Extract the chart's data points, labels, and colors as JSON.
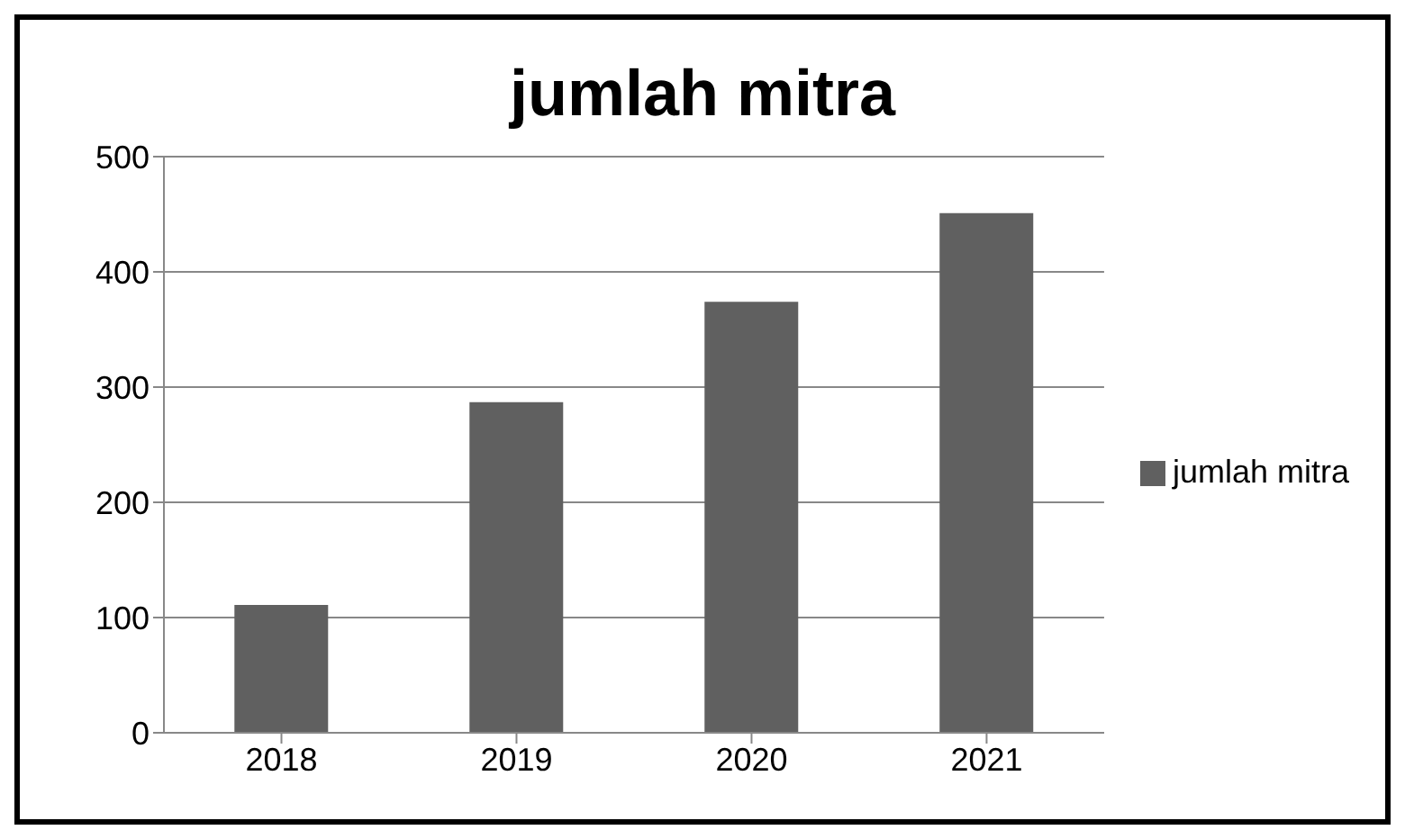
{
  "chart_data": {
    "type": "bar",
    "title": "jumlah mitra",
    "categories": [
      "2018",
      "2019",
      "2020",
      "2021"
    ],
    "series": [
      {
        "name": "jumlah mitra",
        "color": "#606060",
        "values": [
          111,
          287,
          374,
          451
        ]
      }
    ],
    "ylim": [
      0,
      500
    ],
    "yticks": [
      0,
      100,
      200,
      300,
      400,
      500
    ],
    "grid": "y",
    "legend": "right"
  }
}
